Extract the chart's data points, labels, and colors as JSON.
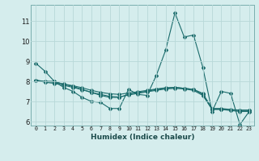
{
  "xlabel": "Humidex (Indice chaleur)",
  "background_color": "#d5eded",
  "grid_color": "#b8d8d8",
  "line_color": "#1a6b6b",
  "xlim": [
    -0.5,
    23.5
  ],
  "ylim": [
    5.8,
    11.8
  ],
  "yticks": [
    6,
    7,
    8,
    9,
    10,
    11
  ],
  "xticks": [
    0,
    1,
    2,
    3,
    4,
    5,
    6,
    7,
    8,
    9,
    10,
    11,
    12,
    13,
    14,
    15,
    16,
    17,
    18,
    19,
    20,
    21,
    22,
    23
  ],
  "series": [
    [
      8.9,
      8.5,
      8.0,
      7.7,
      7.5,
      7.2,
      7.0,
      6.95,
      6.65,
      6.65,
      7.6,
      7.35,
      7.3,
      8.3,
      9.55,
      11.4,
      10.2,
      10.3,
      8.7,
      6.5,
      7.5,
      7.4,
      5.85,
      6.5
    ],
    [
      8.05,
      8.0,
      8.0,
      7.85,
      7.75,
      7.6,
      7.45,
      7.3,
      7.2,
      7.2,
      7.35,
      7.45,
      7.5,
      7.6,
      7.65,
      7.7,
      7.65,
      7.6,
      7.35,
      6.6,
      6.6,
      6.55,
      6.5,
      6.5
    ],
    [
      8.05,
      7.95,
      7.9,
      7.8,
      7.7,
      7.58,
      7.45,
      7.35,
      7.25,
      7.22,
      7.32,
      7.4,
      7.48,
      7.55,
      7.62,
      7.65,
      7.62,
      7.55,
      7.3,
      6.62,
      6.62,
      6.58,
      6.55,
      6.55
    ],
    [
      8.05,
      7.98,
      7.95,
      7.87,
      7.78,
      7.68,
      7.55,
      7.45,
      7.38,
      7.35,
      7.42,
      7.48,
      7.55,
      7.62,
      7.68,
      7.7,
      7.65,
      7.6,
      7.4,
      6.65,
      6.65,
      6.6,
      6.57,
      6.57
    ]
  ]
}
